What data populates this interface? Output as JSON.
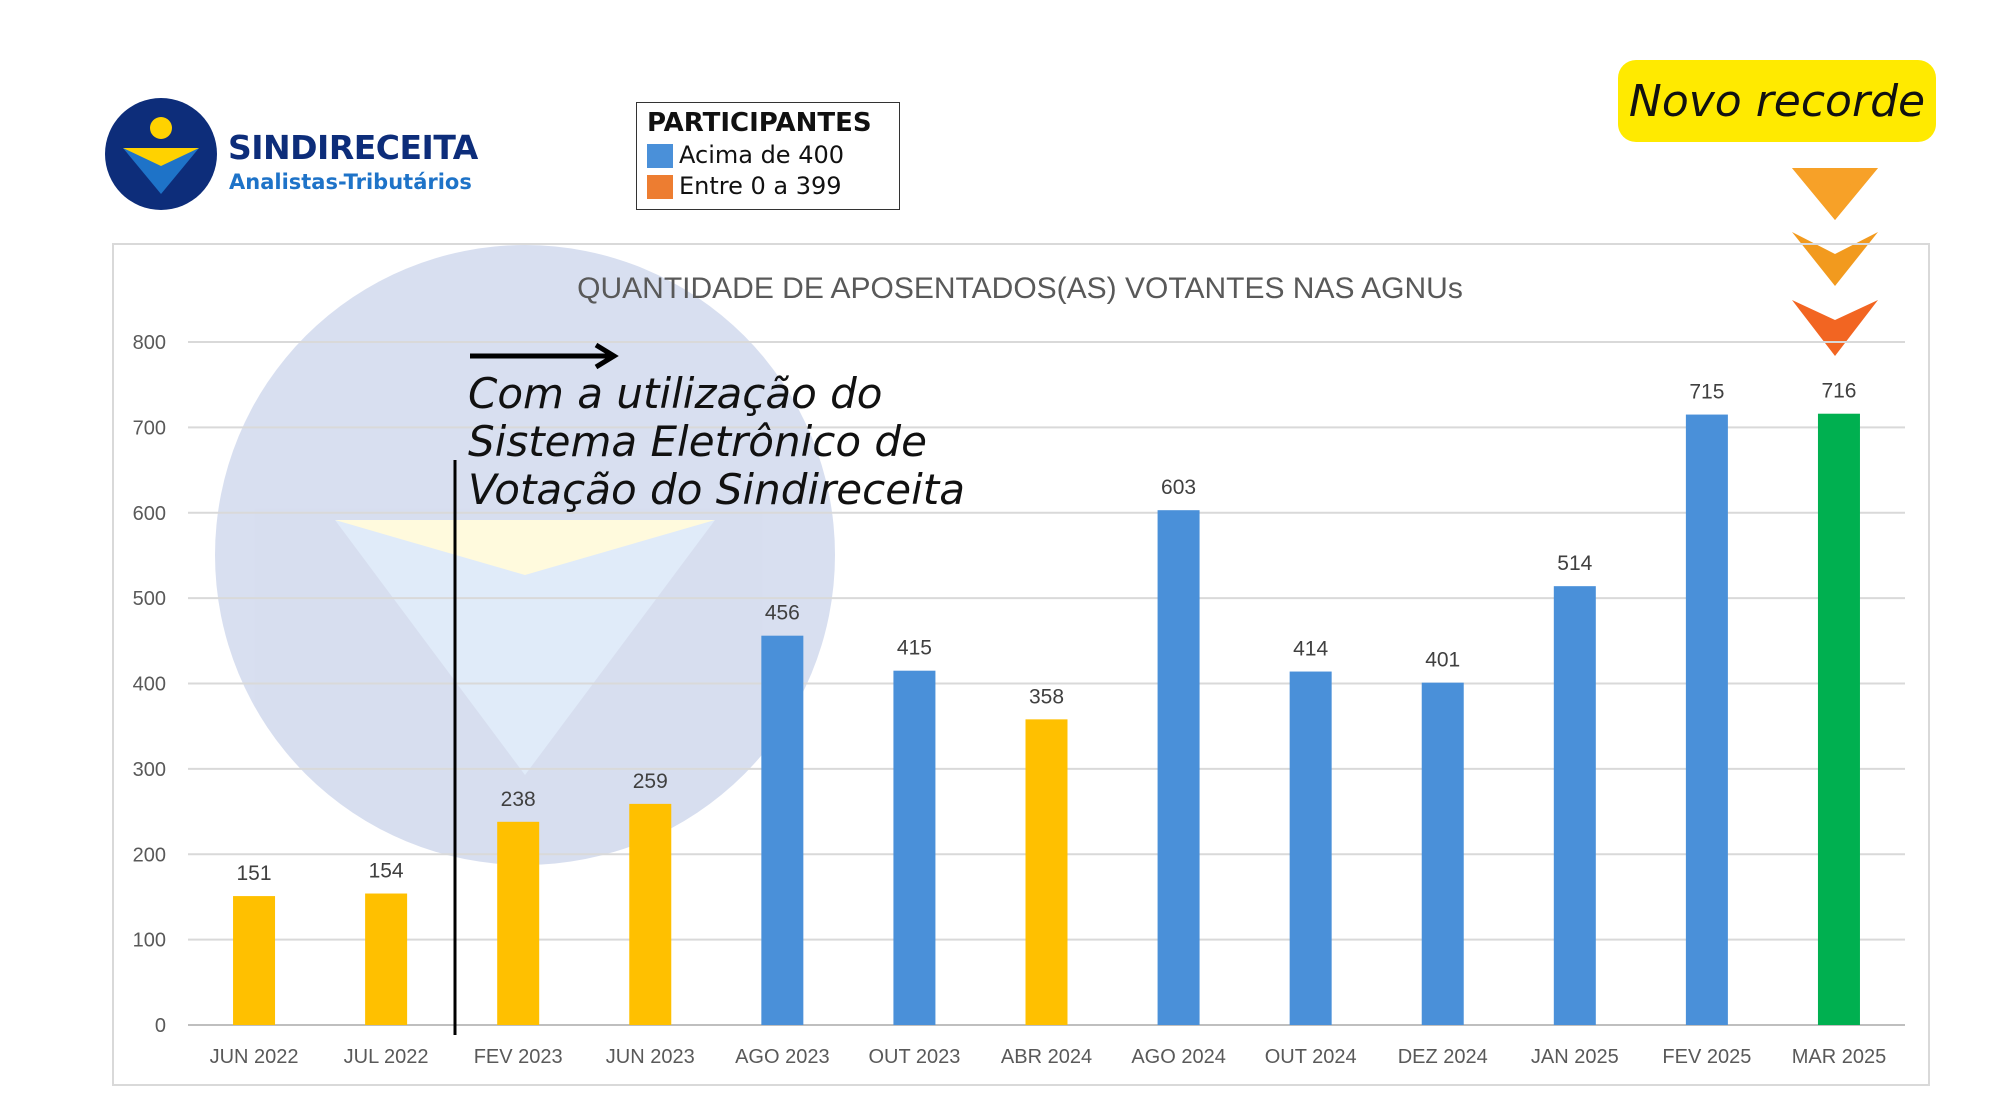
{
  "brand": {
    "name": "SINDIRECEITA",
    "subtitle": "Analistas-Tributários"
  },
  "legend": {
    "title": "PARTICIPANTES",
    "items": [
      {
        "label": "Acima de 400",
        "color": "#4a90d9"
      },
      {
        "label": "Entre 0 a 399",
        "color": "#ed7d31"
      }
    ]
  },
  "badge": {
    "text": "Novo recorde",
    "color": "#ffea00"
  },
  "annotation": {
    "lines": [
      "Com a utilização do",
      "Sistema Eletrônico de",
      "Votação do Sindireceita"
    ]
  },
  "chart_data": {
    "type": "bar",
    "title": "QUANTIDADE DE APOSENTADOS(AS) VOTANTES NAS AGNUs",
    "categories": [
      "JUN 2022",
      "JUL 2022",
      "FEV 2023",
      "JUN 2023",
      "AGO 2023",
      "OUT 2023",
      "ABR 2024",
      "AGO 2024",
      "OUT 2024",
      "DEZ 2024",
      "JAN 2025",
      "FEV 2025",
      "MAR 2025"
    ],
    "values": [
      151,
      154,
      238,
      259,
      456,
      415,
      358,
      603,
      414,
      401,
      514,
      715,
      716
    ],
    "bar_colors": [
      "#ffc000",
      "#ffc000",
      "#ffc000",
      "#ffc000",
      "#4a90d9",
      "#4a90d9",
      "#ffc000",
      "#4a90d9",
      "#4a90d9",
      "#4a90d9",
      "#4a90d9",
      "#4a90d9",
      "#00b050"
    ],
    "ylim": [
      0,
      800
    ],
    "yticks": [
      0,
      100,
      200,
      300,
      400,
      500,
      600,
      700,
      800
    ],
    "grid": true,
    "xlabel": "",
    "ylabel": ""
  }
}
